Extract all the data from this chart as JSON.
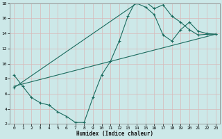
{
  "background_color": "#cce8e8",
  "grid_color": "#e8c8c8",
  "line_color": "#1a6b5e",
  "xlabel": "Humidex (Indice chaleur)",
  "xlim": [
    -0.5,
    23.5
  ],
  "ylim": [
    2,
    18
  ],
  "ytick_vals": [
    2,
    4,
    6,
    8,
    10,
    12,
    14,
    16,
    18
  ],
  "line1_x": [
    0,
    1,
    2,
    3,
    4,
    5,
    6,
    7,
    8,
    9,
    10,
    11,
    12,
    13,
    14,
    15,
    16,
    17,
    18,
    19,
    20,
    21,
    22,
    23
  ],
  "line1_y": [
    8.5,
    7.0,
    5.5,
    4.8,
    4.5,
    3.6,
    3.0,
    2.2,
    2.2,
    5.5,
    8.5,
    10.3,
    13.0,
    16.3,
    18.5,
    18.2,
    17.3,
    17.8,
    16.3,
    15.5,
    14.5,
    13.8,
    13.9,
    13.9
  ],
  "line2_x": [
    0,
    14,
    15,
    16,
    17,
    18,
    19,
    20,
    21,
    22,
    23
  ],
  "line2_y": [
    6.8,
    18.0,
    17.5,
    16.5,
    13.8,
    13.0,
    14.5,
    15.5,
    14.3,
    14.0,
    13.9
  ],
  "line3_x": [
    0,
    23
  ],
  "line3_y": [
    7.0,
    13.9
  ]
}
